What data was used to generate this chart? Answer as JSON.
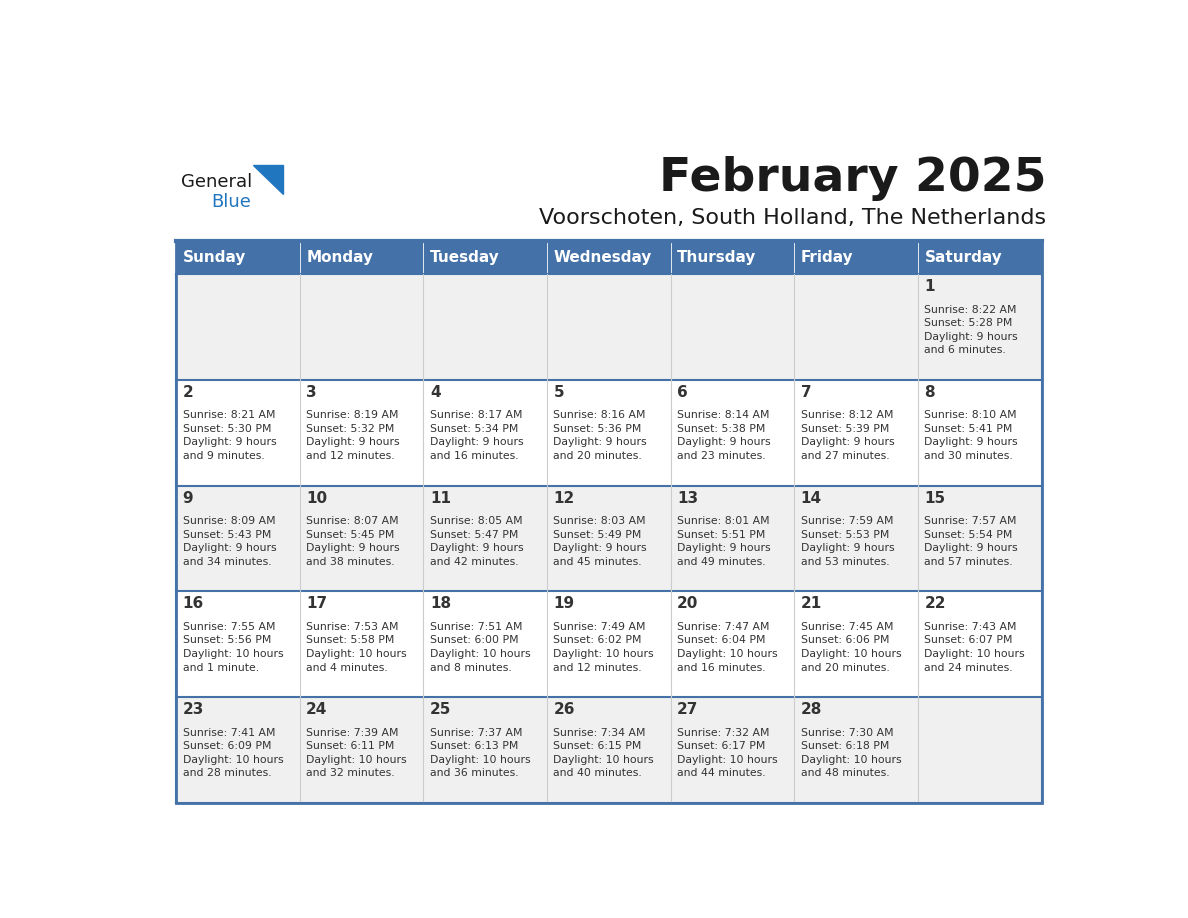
{
  "title": "February 2025",
  "subtitle": "Voorschoten, South Holland, The Netherlands",
  "header_color": "#4472a8",
  "header_text_color": "#ffffff",
  "cell_bg_odd": "#f0f0f0",
  "cell_bg_even": "#ffffff",
  "border_color": "#4472a8",
  "text_color": "#333333",
  "days_of_week": [
    "Sunday",
    "Monday",
    "Tuesday",
    "Wednesday",
    "Thursday",
    "Friday",
    "Saturday"
  ],
  "weeks": [
    [
      {
        "day": null,
        "info": null
      },
      {
        "day": null,
        "info": null
      },
      {
        "day": null,
        "info": null
      },
      {
        "day": null,
        "info": null
      },
      {
        "day": null,
        "info": null
      },
      {
        "day": null,
        "info": null
      },
      {
        "day": 1,
        "info": "Sunrise: 8:22 AM\nSunset: 5:28 PM\nDaylight: 9 hours\nand 6 minutes."
      }
    ],
    [
      {
        "day": 2,
        "info": "Sunrise: 8:21 AM\nSunset: 5:30 PM\nDaylight: 9 hours\nand 9 minutes."
      },
      {
        "day": 3,
        "info": "Sunrise: 8:19 AM\nSunset: 5:32 PM\nDaylight: 9 hours\nand 12 minutes."
      },
      {
        "day": 4,
        "info": "Sunrise: 8:17 AM\nSunset: 5:34 PM\nDaylight: 9 hours\nand 16 minutes."
      },
      {
        "day": 5,
        "info": "Sunrise: 8:16 AM\nSunset: 5:36 PM\nDaylight: 9 hours\nand 20 minutes."
      },
      {
        "day": 6,
        "info": "Sunrise: 8:14 AM\nSunset: 5:38 PM\nDaylight: 9 hours\nand 23 minutes."
      },
      {
        "day": 7,
        "info": "Sunrise: 8:12 AM\nSunset: 5:39 PM\nDaylight: 9 hours\nand 27 minutes."
      },
      {
        "day": 8,
        "info": "Sunrise: 8:10 AM\nSunset: 5:41 PM\nDaylight: 9 hours\nand 30 minutes."
      }
    ],
    [
      {
        "day": 9,
        "info": "Sunrise: 8:09 AM\nSunset: 5:43 PM\nDaylight: 9 hours\nand 34 minutes."
      },
      {
        "day": 10,
        "info": "Sunrise: 8:07 AM\nSunset: 5:45 PM\nDaylight: 9 hours\nand 38 minutes."
      },
      {
        "day": 11,
        "info": "Sunrise: 8:05 AM\nSunset: 5:47 PM\nDaylight: 9 hours\nand 42 minutes."
      },
      {
        "day": 12,
        "info": "Sunrise: 8:03 AM\nSunset: 5:49 PM\nDaylight: 9 hours\nand 45 minutes."
      },
      {
        "day": 13,
        "info": "Sunrise: 8:01 AM\nSunset: 5:51 PM\nDaylight: 9 hours\nand 49 minutes."
      },
      {
        "day": 14,
        "info": "Sunrise: 7:59 AM\nSunset: 5:53 PM\nDaylight: 9 hours\nand 53 minutes."
      },
      {
        "day": 15,
        "info": "Sunrise: 7:57 AM\nSunset: 5:54 PM\nDaylight: 9 hours\nand 57 minutes."
      }
    ],
    [
      {
        "day": 16,
        "info": "Sunrise: 7:55 AM\nSunset: 5:56 PM\nDaylight: 10 hours\nand 1 minute."
      },
      {
        "day": 17,
        "info": "Sunrise: 7:53 AM\nSunset: 5:58 PM\nDaylight: 10 hours\nand 4 minutes."
      },
      {
        "day": 18,
        "info": "Sunrise: 7:51 AM\nSunset: 6:00 PM\nDaylight: 10 hours\nand 8 minutes."
      },
      {
        "day": 19,
        "info": "Sunrise: 7:49 AM\nSunset: 6:02 PM\nDaylight: 10 hours\nand 12 minutes."
      },
      {
        "day": 20,
        "info": "Sunrise: 7:47 AM\nSunset: 6:04 PM\nDaylight: 10 hours\nand 16 minutes."
      },
      {
        "day": 21,
        "info": "Sunrise: 7:45 AM\nSunset: 6:06 PM\nDaylight: 10 hours\nand 20 minutes."
      },
      {
        "day": 22,
        "info": "Sunrise: 7:43 AM\nSunset: 6:07 PM\nDaylight: 10 hours\nand 24 minutes."
      }
    ],
    [
      {
        "day": 23,
        "info": "Sunrise: 7:41 AM\nSunset: 6:09 PM\nDaylight: 10 hours\nand 28 minutes."
      },
      {
        "day": 24,
        "info": "Sunrise: 7:39 AM\nSunset: 6:11 PM\nDaylight: 10 hours\nand 32 minutes."
      },
      {
        "day": 25,
        "info": "Sunrise: 7:37 AM\nSunset: 6:13 PM\nDaylight: 10 hours\nand 36 minutes."
      },
      {
        "day": 26,
        "info": "Sunrise: 7:34 AM\nSunset: 6:15 PM\nDaylight: 10 hours\nand 40 minutes."
      },
      {
        "day": 27,
        "info": "Sunrise: 7:32 AM\nSunset: 6:17 PM\nDaylight: 10 hours\nand 44 minutes."
      },
      {
        "day": 28,
        "info": "Sunrise: 7:30 AM\nSunset: 6:18 PM\nDaylight: 10 hours\nand 48 minutes."
      },
      {
        "day": null,
        "info": null
      }
    ]
  ],
  "logo_general_color": "#1a1a1a",
  "logo_blue_color": "#2176c0",
  "logo_triangle_color": "#2176c0"
}
